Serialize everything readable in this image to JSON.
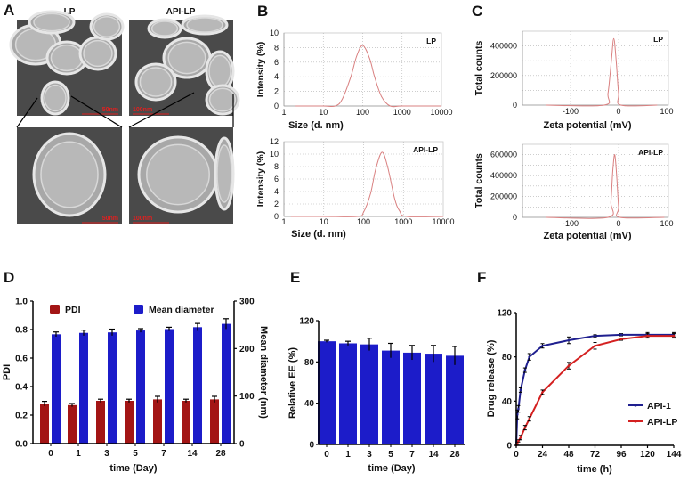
{
  "panels": {
    "A": {
      "letter": "A",
      "columns": [
        "LP",
        "API-LP"
      ],
      "scale_bars": {
        "lp_top": "50nm",
        "api_top": "100nm",
        "lp_bottom": "50nm",
        "api_bottom": "100nm"
      },
      "scale_bar_color": "#e02020"
    },
    "B": {
      "letter": "B"
    },
    "C": {
      "letter": "C"
    },
    "D": {
      "letter": "D"
    },
    "E": {
      "letter": "E"
    },
    "F": {
      "letter": "F"
    }
  },
  "colors": {
    "curve": "#d98080",
    "grid": "#b0b0b0",
    "pdi_bar": "#a31515",
    "blue_bar": "#1c1cc9",
    "api1_line": "#1f1f8f",
    "apilp_line": "#d42020"
  },
  "chart_data": [
    {
      "panel": "B",
      "type": "line",
      "label": "LP",
      "xlabel": "Size (d. nm)",
      "ylabel": "Intensity (%)",
      "xscale": "log",
      "xlim": [
        1,
        10000
      ],
      "ylim": [
        0,
        10
      ],
      "grid": true,
      "xticks": [
        "1",
        "10",
        "100",
        "1000",
        "10000"
      ],
      "yticks": [
        "0",
        "2",
        "4",
        "6",
        "8",
        "10"
      ],
      "x": [
        2,
        10,
        20,
        30,
        50,
        70,
        100,
        150,
        200,
        300,
        500,
        1000,
        10000
      ],
      "y": [
        0,
        0,
        0,
        0.9,
        4.0,
        6.8,
        8.3,
        6.5,
        4.0,
        1.3,
        0,
        0,
        0
      ]
    },
    {
      "panel": "B",
      "type": "line",
      "label": "API-LP",
      "xlabel": "Size (d. nm)",
      "ylabel": "Intensity (%)",
      "xscale": "log",
      "xlim": [
        1,
        10000
      ],
      "ylim": [
        0,
        12
      ],
      "grid": true,
      "xticks": [
        "1",
        "10",
        "100",
        "1000",
        "10000"
      ],
      "yticks": [
        "0",
        "2",
        "4",
        "6",
        "8",
        "10",
        "12"
      ],
      "x": [
        1.5,
        10,
        70,
        100,
        150,
        200,
        290,
        400,
        600,
        800,
        1200,
        10000
      ],
      "y": [
        0,
        0,
        0,
        0.7,
        3.7,
        7.5,
        10.3,
        8.0,
        2.9,
        0.9,
        0,
        0
      ]
    },
    {
      "panel": "C",
      "type": "line",
      "label": "LP",
      "xlabel": "Zeta potential (mV)",
      "ylabel": "Total counts",
      "xlim": [
        -200,
        100
      ],
      "ylim": [
        0,
        500000
      ],
      "grid": true,
      "xticks": [
        "-100",
        "0",
        "100"
      ],
      "yticks": [
        "0",
        "200000",
        "400000"
      ],
      "x": [
        -150,
        -30,
        -22,
        -15,
        -10,
        -5,
        0,
        5,
        80
      ],
      "y": [
        0,
        0,
        80000,
        300000,
        450000,
        300000,
        80000,
        0,
        0
      ]
    },
    {
      "panel": "C",
      "type": "line",
      "label": "API-LP",
      "xlabel": "Zeta potential (mV)",
      "ylabel": "Total counts",
      "xlim": [
        -200,
        100
      ],
      "ylim": [
        0,
        700000
      ],
      "grid": true,
      "xticks": [
        "-100",
        "0",
        "100"
      ],
      "yticks": [
        "0",
        "200000",
        "400000",
        "600000"
      ],
      "x": [
        -150,
        -22,
        -16,
        -12,
        -8,
        -4,
        0,
        3,
        95
      ],
      "y": [
        0,
        0,
        150000,
        450000,
        600000,
        400000,
        100000,
        0,
        0
      ]
    },
    {
      "panel": "D",
      "type": "bar",
      "xlabel": "time (Day)",
      "ylabel": "PDI",
      "y2label": "Mean diameter (nm)",
      "categories": [
        "0",
        "1",
        "3",
        "5",
        "7",
        "14",
        "28"
      ],
      "ylim": [
        0,
        1.0
      ],
      "y2lim": [
        0,
        300
      ],
      "yticks": [
        "0.0",
        "0.2",
        "0.4",
        "0.6",
        "0.8",
        "1.0"
      ],
      "y2ticks": [
        "0",
        "100",
        "200",
        "300"
      ],
      "legend": "top",
      "series": [
        {
          "name": "PDI",
          "axis": "left",
          "values": [
            0.28,
            0.27,
            0.3,
            0.3,
            0.31,
            0.3,
            0.31
          ],
          "errors": [
            0.01,
            0.005,
            0.005,
            0.005,
            0.015,
            0.005,
            0.015
          ]
        },
        {
          "name": "Mean diameter",
          "axis": "right",
          "values": [
            230,
            233,
            234,
            238,
            241,
            245,
            252
          ],
          "errors": [
            3,
            4,
            5,
            2,
            2,
            6,
            9
          ]
        }
      ]
    },
    {
      "panel": "E",
      "type": "bar",
      "xlabel": "time (Day)",
      "ylabel": "Relative EE (%)",
      "categories": [
        "0",
        "1",
        "3",
        "5",
        "7",
        "14",
        "28"
      ],
      "ylim": [
        0,
        120
      ],
      "yticks": [
        "0",
        "40",
        "80",
        "120"
      ],
      "values": [
        100,
        98,
        97,
        91,
        89,
        88,
        86
      ],
      "errors": [
        1,
        2,
        6,
        7,
        7,
        8,
        9
      ]
    },
    {
      "panel": "F",
      "type": "line",
      "xlabel": "time (h)",
      "ylabel": "Drug release (%)",
      "xlim": [
        0,
        144
      ],
      "ylim": [
        0,
        120
      ],
      "xticks": [
        "0",
        "24",
        "48",
        "72",
        "96",
        "120",
        "144"
      ],
      "yticks": [
        "0",
        "40",
        "80",
        "120"
      ],
      "legend": "bottom-right",
      "x": [
        0,
        1,
        2,
        4,
        8,
        12,
        24,
        48,
        72,
        96,
        120,
        144
      ],
      "series": [
        {
          "name": "API-1",
          "values": [
            0,
            28,
            33,
            50,
            68,
            80,
            90,
            95,
            99,
            100,
            100,
            100
          ],
          "errors": [
            0,
            4,
            3,
            2,
            2,
            3,
            2,
            3,
            1,
            1,
            2,
            2
          ]
        },
        {
          "name": "API-LP",
          "values": [
            0,
            2,
            4,
            7,
            16,
            24,
            48,
            72,
            90,
            96,
            99,
            99
          ],
          "errors": [
            0,
            1,
            1,
            2,
            2,
            2,
            2,
            3,
            3,
            1,
            2,
            2
          ]
        }
      ]
    }
  ]
}
